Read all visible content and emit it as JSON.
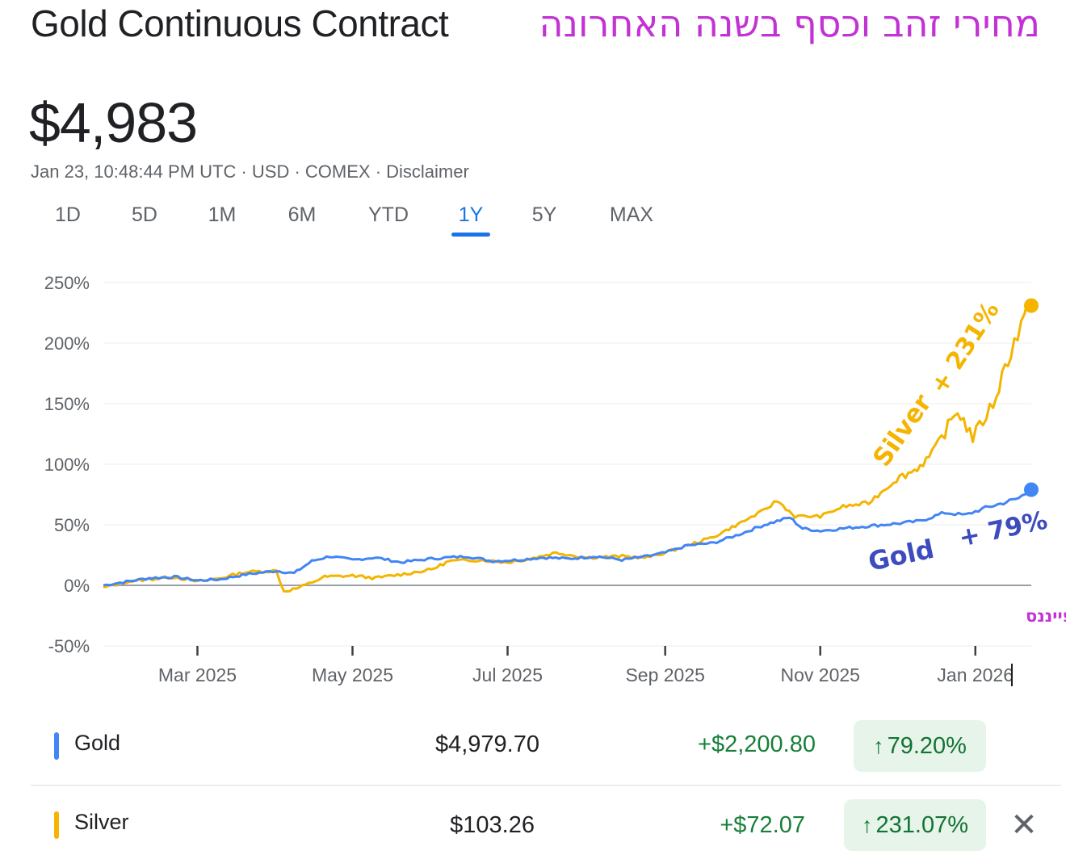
{
  "header": {
    "title": "Gold Continuous Contract",
    "hebrew_title": "מחירי זהב וכסף בשנה האחרונה",
    "price": "$4,983",
    "meta": "Jan 23, 10:48:44 PM UTC · USD · COMEX · Disclaimer"
  },
  "tabs": [
    {
      "label": "1D"
    },
    {
      "label": "5D"
    },
    {
      "label": "1M"
    },
    {
      "label": "6M"
    },
    {
      "label": "YTD"
    },
    {
      "label": "1Y",
      "active": true
    },
    {
      "label": "5Y"
    },
    {
      "label": "MAX"
    }
  ],
  "chart_data": {
    "type": "line",
    "y_unit": "%",
    "ylim": [
      -50,
      250
    ],
    "y_ticks": [
      "250%",
      "200%",
      "150%",
      "100%",
      "50%",
      "0%",
      "-50%"
    ],
    "y_tick_values": [
      250,
      200,
      150,
      100,
      50,
      0,
      -50
    ],
    "x_ticks": [
      "Mar 2025",
      "May 2025",
      "Jul 2025",
      "Sep 2025",
      "Nov 2025",
      "Jan 2026"
    ],
    "x_tick_dates": [
      "2025-03-01",
      "2025-05-01",
      "2025-07-01",
      "2025-09-01",
      "2025-11-01",
      "2026-01-01"
    ],
    "x_range": [
      "2025-01-23",
      "2026-01-23"
    ],
    "series": [
      {
        "name": "Gold",
        "color": "#4285f4",
        "points": [
          [
            "2025-01-23",
            0
          ],
          [
            "2025-02-01",
            3
          ],
          [
            "2025-02-10",
            6
          ],
          [
            "2025-02-20",
            7
          ],
          [
            "2025-03-01",
            4
          ],
          [
            "2025-03-10",
            5
          ],
          [
            "2025-03-20",
            9
          ],
          [
            "2025-04-01",
            12
          ],
          [
            "2025-04-08",
            10
          ],
          [
            "2025-04-15",
            20
          ],
          [
            "2025-04-22",
            24
          ],
          [
            "2025-05-01",
            21
          ],
          [
            "2025-05-10",
            23
          ],
          [
            "2025-05-20",
            19
          ],
          [
            "2025-06-01",
            22
          ],
          [
            "2025-06-15",
            24
          ],
          [
            "2025-06-25",
            20
          ],
          [
            "2025-07-05",
            21
          ],
          [
            "2025-07-15",
            23
          ],
          [
            "2025-07-25",
            22
          ],
          [
            "2025-08-05",
            24
          ],
          [
            "2025-08-15",
            21
          ],
          [
            "2025-08-25",
            24
          ],
          [
            "2025-09-01",
            27
          ],
          [
            "2025-09-10",
            33
          ],
          [
            "2025-09-20",
            35
          ],
          [
            "2025-09-30",
            42
          ],
          [
            "2025-10-10",
            50
          ],
          [
            "2025-10-20",
            56
          ],
          [
            "2025-10-25",
            47
          ],
          [
            "2025-11-01",
            45
          ],
          [
            "2025-11-10",
            47
          ],
          [
            "2025-11-20",
            49
          ],
          [
            "2025-12-01",
            51
          ],
          [
            "2025-12-10",
            53
          ],
          [
            "2025-12-20",
            60
          ],
          [
            "2025-12-28",
            58
          ],
          [
            "2026-01-05",
            64
          ],
          [
            "2026-01-12",
            68
          ],
          [
            "2026-01-18",
            72
          ],
          [
            "2026-01-23",
            79
          ]
        ],
        "annotation": "+ 79%",
        "label": "Gold"
      },
      {
        "name": "Silver",
        "color": "#f4b400",
        "points": [
          [
            "2025-01-23",
            -2
          ],
          [
            "2025-02-01",
            3
          ],
          [
            "2025-02-10",
            5
          ],
          [
            "2025-02-20",
            7
          ],
          [
            "2025-03-01",
            3
          ],
          [
            "2025-03-10",
            6
          ],
          [
            "2025-03-20",
            11
          ],
          [
            "2025-04-01",
            12
          ],
          [
            "2025-04-04",
            -5
          ],
          [
            "2025-04-10",
            -2
          ],
          [
            "2025-04-20",
            7
          ],
          [
            "2025-05-01",
            8
          ],
          [
            "2025-05-10",
            6
          ],
          [
            "2025-05-20",
            9
          ],
          [
            "2025-06-01",
            13
          ],
          [
            "2025-06-08",
            20
          ],
          [
            "2025-06-20",
            21
          ],
          [
            "2025-07-01",
            19
          ],
          [
            "2025-07-10",
            22
          ],
          [
            "2025-07-20",
            27
          ],
          [
            "2025-08-01",
            23
          ],
          [
            "2025-08-15",
            24
          ],
          [
            "2025-08-25",
            23
          ],
          [
            "2025-09-01",
            27
          ],
          [
            "2025-09-10",
            33
          ],
          [
            "2025-09-20",
            40
          ],
          [
            "2025-10-01",
            52
          ],
          [
            "2025-10-10",
            62
          ],
          [
            "2025-10-15",
            70
          ],
          [
            "2025-10-22",
            57
          ],
          [
            "2025-11-01",
            57
          ],
          [
            "2025-11-10",
            65
          ],
          [
            "2025-11-20",
            68
          ],
          [
            "2025-12-01",
            88
          ],
          [
            "2025-12-08",
            95
          ],
          [
            "2025-12-15",
            108
          ],
          [
            "2025-12-25",
            145
          ],
          [
            "2025-12-31",
            122
          ],
          [
            "2026-01-08",
            150
          ],
          [
            "2026-01-15",
            195
          ],
          [
            "2026-01-23",
            231
          ]
        ],
        "annotation": "+ 231%",
        "label": "Silver"
      }
    ],
    "source": "מקור: גוגל פייננס"
  },
  "legend": [
    {
      "name": "Gold",
      "color": "#4285f4",
      "price": "$4,979.70",
      "change": "+$2,200.80",
      "pct": "79.20%",
      "arrow": "↑"
    },
    {
      "name": "Silver",
      "color": "#f4b400",
      "price": "$103.26",
      "change": "+$72.07",
      "pct": "231.07%",
      "arrow": "↑"
    }
  ],
  "close_glyph": "✕"
}
